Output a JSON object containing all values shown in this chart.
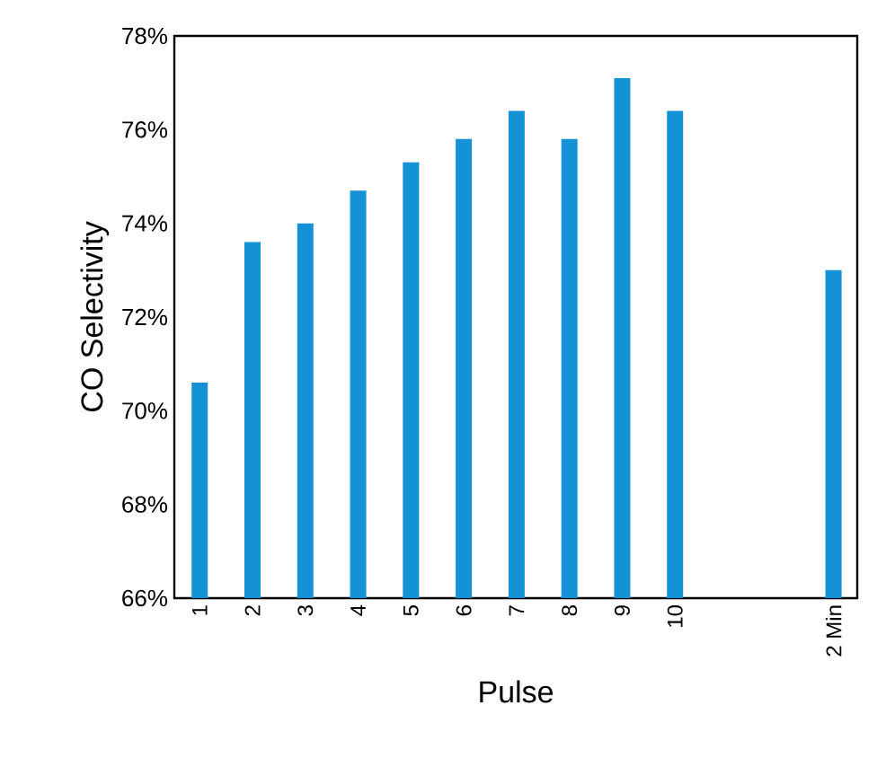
{
  "chart_data": {
    "type": "bar",
    "xlabel": "Pulse",
    "ylabel": "CO Selectivity",
    "categories": [
      "1",
      "2",
      "3",
      "4",
      "5",
      "6",
      "7",
      "8",
      "9",
      "10",
      null,
      null,
      "2 Min"
    ],
    "values": [
      70.6,
      73.6,
      74.0,
      74.7,
      75.3,
      75.8,
      76.4,
      75.8,
      77.1,
      76.4,
      null,
      null,
      73.0
    ],
    "color": "#1591d6",
    "ylim": [
      66,
      78
    ],
    "yticks": [
      {
        "value": 66,
        "label": "66%"
      },
      {
        "value": 68,
        "label": "68%"
      },
      {
        "value": 70,
        "label": "70%"
      },
      {
        "value": 72,
        "label": "72%"
      },
      {
        "value": 74,
        "label": "74%"
      },
      {
        "value": 76,
        "label": "76%"
      },
      {
        "value": 78,
        "label": "78%"
      }
    ],
    "grid": false
  }
}
